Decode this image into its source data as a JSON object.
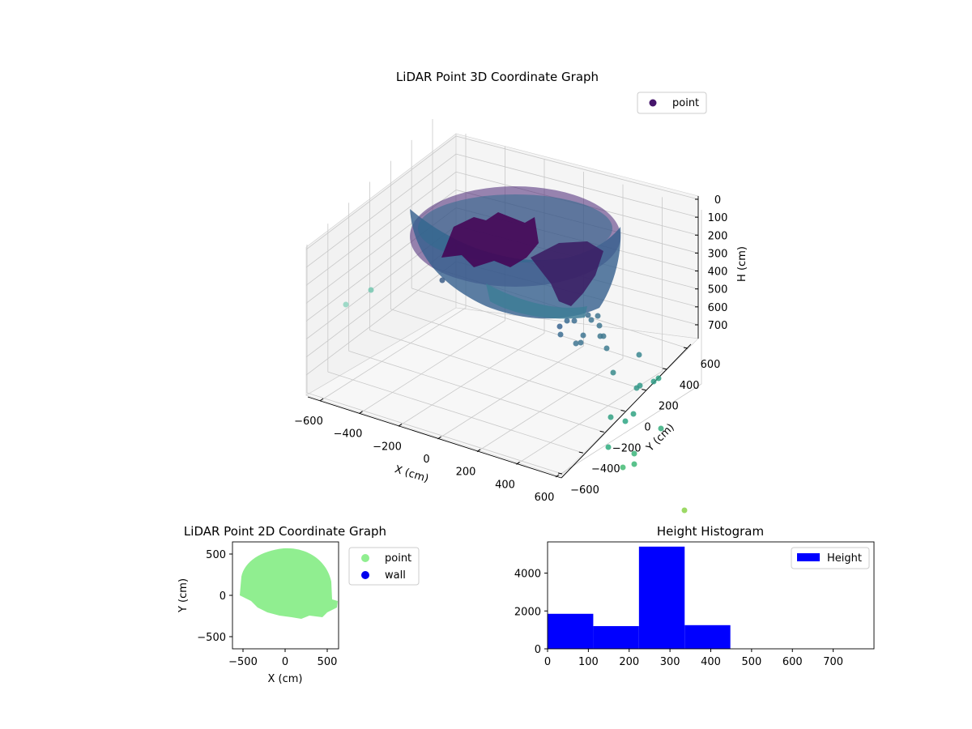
{
  "chart_data": [
    {
      "type": "scatter",
      "title": "LiDAR Point 3D Coordinate Graph",
      "xlabel": "X (cm)",
      "ylabel": "Y (cm)",
      "zlabel": "H (cm)",
      "xticks": [
        "−600",
        "−400",
        "−200",
        "0",
        "200",
        "400",
        "600"
      ],
      "yticks": [
        "−600",
        "−400",
        "−200",
        "0",
        "200",
        "400",
        "600"
      ],
      "zticks": [
        "0",
        "100",
        "200",
        "300",
        "400",
        "500",
        "600",
        "700"
      ],
      "xlim": [
        -600,
        600
      ],
      "ylim": [
        -600,
        600
      ],
      "zlim": [
        0,
        750
      ],
      "z_inverted": true,
      "colormap": "viridis",
      "legend": [
        {
          "name": "point",
          "color": "#46166b"
        }
      ],
      "legend_position": "top-right",
      "grid": true
    },
    {
      "type": "scatter",
      "title": "LiDAR Point 2D Coordinate Graph",
      "xlabel": "X (cm)",
      "ylabel": "Y (cm)",
      "xticks": [
        "−500",
        "0",
        "500"
      ],
      "yticks": [
        "500",
        "0",
        "−500"
      ],
      "xlim": [
        -620,
        640
      ],
      "ylim": [
        -640,
        640
      ],
      "series": [
        {
          "name": "point",
          "color": "#90ee90"
        },
        {
          "name": "wall",
          "color": "#0000ee"
        }
      ],
      "legend_position": "outside-right",
      "grid": false
    },
    {
      "type": "bar",
      "title": "Height Histogram",
      "xticks": [
        "0",
        "100",
        "200",
        "300",
        "400",
        "500",
        "600",
        "700"
      ],
      "yticks": [
        "0",
        "2000",
        "4000"
      ],
      "bin_edges": [
        0,
        112,
        224,
        336,
        448
      ],
      "counts": [
        1850,
        1200,
        5400,
        1250
      ],
      "xlim": [
        0,
        800
      ],
      "ylim": [
        0,
        5650
      ],
      "series": [
        {
          "name": "Height",
          "color": "#0000ff"
        }
      ],
      "legend_position": "top-right"
    }
  ]
}
